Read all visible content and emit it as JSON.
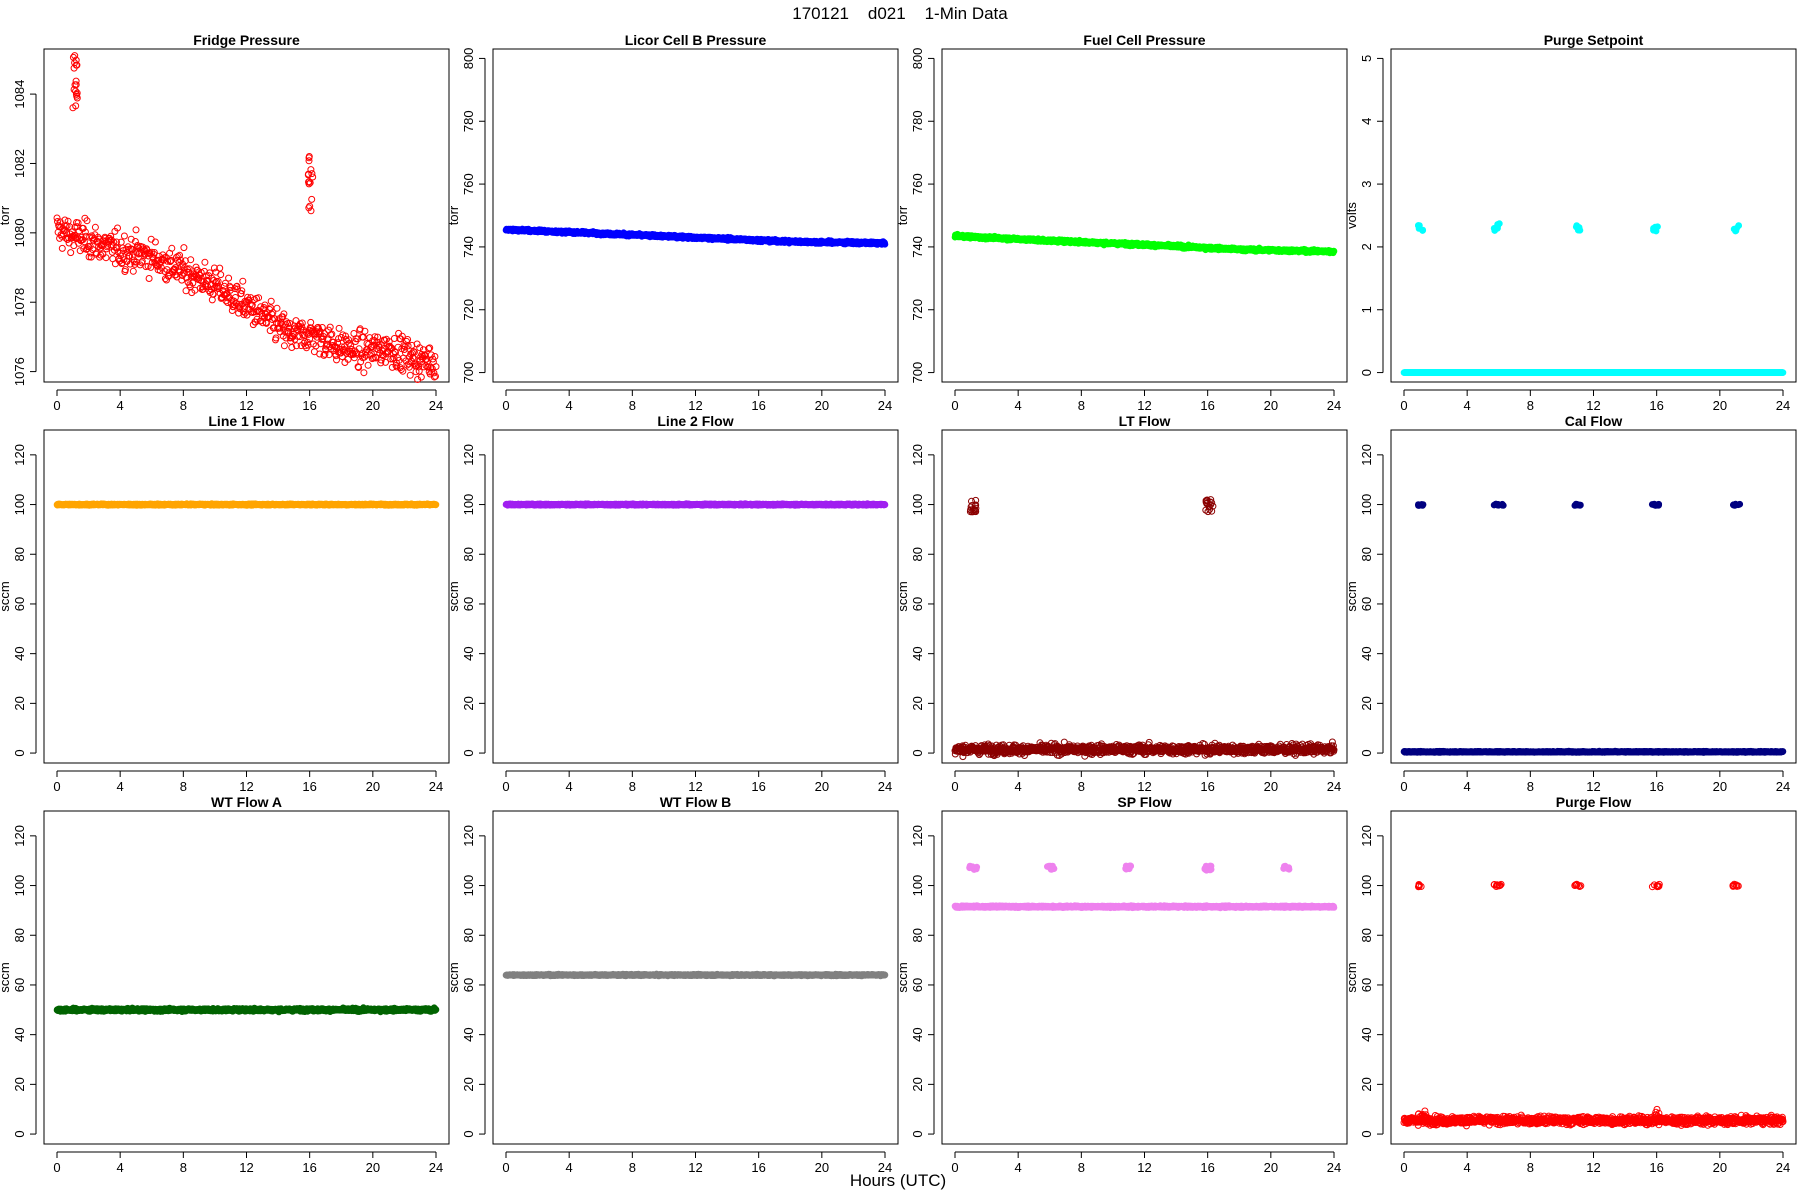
{
  "figure": {
    "title": "170121    d021    1-Min Data",
    "xlabel": "Hours (UTC)"
  },
  "chart_data": [
    {
      "type": "scatter",
      "title": "Fridge Pressure",
      "ylabel": "torr",
      "xlim": [
        0,
        24
      ],
      "ylim": [
        1075.7,
        1085.3
      ],
      "yticks": [
        1076,
        1078,
        1080,
        1082,
        1084
      ],
      "xticks": [
        0,
        4,
        8,
        12,
        16,
        20,
        24
      ],
      "color": "#ff0000",
      "marker": "open-circle",
      "series": [
        {
          "x": [
            0,
            1,
            2,
            3,
            4,
            5,
            6,
            7,
            8,
            9,
            10,
            11,
            12,
            13,
            14,
            15,
            16,
            17,
            18,
            19,
            20,
            21,
            22,
            23,
            24
          ],
          "values": [
            1080.1,
            1079.9,
            1079.8,
            1079.6,
            1079.5,
            1079.4,
            1079.3,
            1079.1,
            1078.9,
            1078.7,
            1078.5,
            1078.2,
            1077.9,
            1077.6,
            1077.3,
            1077.0,
            1077.1,
            1076.9,
            1076.7,
            1076.6,
            1076.6,
            1076.7,
            1076.5,
            1076.3,
            1076.3
          ],
          "noise": 0.35,
          "per_hour": 30
        },
        {
          "x_range": [
            1.0,
            1.3
          ],
          "y_range": [
            1083.6,
            1085.2
          ],
          "count": 18
        },
        {
          "x_range": [
            15.9,
            16.2
          ],
          "y_range": [
            1080.6,
            1082.4
          ],
          "count": 16
        }
      ]
    },
    {
      "type": "scatter",
      "title": "Licor Cell B Pressure",
      "ylabel": "torr",
      "xlim": [
        0,
        24
      ],
      "ylim": [
        697,
        803
      ],
      "yticks": [
        700,
        720,
        740,
        760,
        780,
        800
      ],
      "xticks": [
        0,
        4,
        8,
        12,
        16,
        20,
        24
      ],
      "color": "#0000ff",
      "marker": "filled-circle",
      "series": [
        {
          "x": [
            0,
            6,
            12,
            18,
            24
          ],
          "values": [
            745.5,
            744.3,
            743.0,
            741.7,
            741.2
          ],
          "noise": 0.3,
          "per_hour": 60
        }
      ]
    },
    {
      "type": "scatter",
      "title": "Fuel Cell Pressure",
      "ylabel": "torr",
      "xlim": [
        0,
        24
      ],
      "ylim": [
        697,
        803
      ],
      "yticks": [
        700,
        720,
        740,
        760,
        780,
        800
      ],
      "xticks": [
        0,
        4,
        8,
        12,
        16,
        20,
        24
      ],
      "color": "#00ff00",
      "marker": "filled-circle",
      "series": [
        {
          "x": [
            0,
            6,
            12,
            18,
            24
          ],
          "values": [
            743.5,
            742.0,
            740.7,
            739.2,
            738.5
          ],
          "noise": 0.3,
          "per_hour": 60
        }
      ]
    },
    {
      "type": "scatter",
      "title": "Purge Setpoint",
      "ylabel": "volts",
      "xlim": [
        0,
        24
      ],
      "ylim": [
        -0.15,
        5.15
      ],
      "yticks": [
        0,
        1,
        2,
        3,
        4,
        5
      ],
      "xticks": [
        0,
        4,
        8,
        12,
        16,
        20,
        24
      ],
      "color": "#00ffff",
      "marker": "filled-circle",
      "series": [
        {
          "x": [
            0,
            24
          ],
          "values": [
            0.0,
            0.0
          ],
          "noise": 0.0,
          "per_hour": 60
        },
        {
          "x_range": [
            0.9,
            1.2
          ],
          "y_range": [
            2.25,
            2.35
          ],
          "count": 6
        },
        {
          "x_range": [
            5.7,
            6.1
          ],
          "y_range": [
            2.25,
            2.38
          ],
          "count": 6
        },
        {
          "x_range": [
            10.9,
            11.2
          ],
          "y_range": [
            2.25,
            2.35
          ],
          "count": 6
        },
        {
          "x_range": [
            15.7,
            16.1
          ],
          "y_range": [
            2.25,
            2.36
          ],
          "count": 6
        },
        {
          "x_range": [
            20.9,
            21.2
          ],
          "y_range": [
            2.25,
            2.35
          ],
          "count": 6
        }
      ]
    },
    {
      "type": "scatter",
      "title": "Line 1 Flow",
      "ylabel": "sccm",
      "xlim": [
        0,
        24
      ],
      "ylim": [
        -4,
        130
      ],
      "yticks": [
        0,
        20,
        40,
        60,
        80,
        100,
        120
      ],
      "xticks": [
        0,
        4,
        8,
        12,
        16,
        20,
        24
      ],
      "color": "#ffa500",
      "marker": "filled-circle",
      "series": [
        {
          "x": [
            0,
            24
          ],
          "values": [
            100,
            100
          ],
          "noise": 0.2,
          "per_hour": 60
        }
      ]
    },
    {
      "type": "scatter",
      "title": "Line 2 Flow",
      "ylabel": "sccm",
      "xlim": [
        0,
        24
      ],
      "ylim": [
        -4,
        130
      ],
      "yticks": [
        0,
        20,
        40,
        60,
        80,
        100,
        120
      ],
      "xticks": [
        0,
        4,
        8,
        12,
        16,
        20,
        24
      ],
      "color": "#a020f0",
      "marker": "filled-circle",
      "series": [
        {
          "x": [
            0,
            24
          ],
          "values": [
            100,
            100
          ],
          "noise": 0.2,
          "per_hour": 60
        }
      ]
    },
    {
      "type": "scatter",
      "title": "LT Flow",
      "ylabel": "sccm",
      "xlim": [
        0,
        24
      ],
      "ylim": [
        -4,
        130
      ],
      "yticks": [
        0,
        20,
        40,
        60,
        80,
        100,
        120
      ],
      "xticks": [
        0,
        4,
        8,
        12,
        16,
        20,
        24
      ],
      "color": "#8b0000",
      "marker": "open-circle",
      "series": [
        {
          "x": [
            0,
            24
          ],
          "values": [
            1.5,
            1.5
          ],
          "noise": 1.3,
          "per_hour": 50
        },
        {
          "x_range": [
            0.95,
            1.35
          ],
          "y_range": [
            97,
            102
          ],
          "count": 16
        },
        {
          "x_range": [
            15.85,
            16.35
          ],
          "y_range": [
            97,
            102
          ],
          "count": 16
        }
      ]
    },
    {
      "type": "scatter",
      "title": "Cal Flow",
      "ylabel": "sccm",
      "xlim": [
        0,
        24
      ],
      "ylim": [
        -4,
        130
      ],
      "yticks": [
        0,
        20,
        40,
        60,
        80,
        100,
        120
      ],
      "xticks": [
        0,
        4,
        8,
        12,
        16,
        20,
        24
      ],
      "color": "#000080",
      "marker": "filled-circle",
      "series": [
        {
          "x": [
            0,
            24
          ],
          "values": [
            0.5,
            0.5
          ],
          "noise": 0.15,
          "per_hour": 60
        },
        {
          "x_range": [
            0.9,
            1.3
          ],
          "y_range": [
            99.6,
            100.2
          ],
          "count": 10
        },
        {
          "x_range": [
            5.7,
            6.3
          ],
          "y_range": [
            99.6,
            100.2
          ],
          "count": 12
        },
        {
          "x_range": [
            10.8,
            11.2
          ],
          "y_range": [
            99.6,
            100.2
          ],
          "count": 10
        },
        {
          "x_range": [
            15.7,
            16.3
          ],
          "y_range": [
            99.6,
            100.2
          ],
          "count": 12
        },
        {
          "x_range": [
            20.8,
            21.3
          ],
          "y_range": [
            99.6,
            100.2
          ],
          "count": 10
        }
      ]
    },
    {
      "type": "scatter",
      "title": "WT Flow A",
      "ylabel": "sccm",
      "xlim": [
        0,
        24
      ],
      "ylim": [
        -4,
        130
      ],
      "yticks": [
        0,
        20,
        40,
        60,
        80,
        100,
        120
      ],
      "xticks": [
        0,
        4,
        8,
        12,
        16,
        20,
        24
      ],
      "color": "#006400",
      "marker": "filled-circle",
      "series": [
        {
          "x": [
            0,
            24
          ],
          "values": [
            50,
            50
          ],
          "noise": 0.4,
          "per_hour": 60
        }
      ]
    },
    {
      "type": "scatter",
      "title": "WT Flow B",
      "ylabel": "sccm",
      "xlim": [
        0,
        24
      ],
      "ylim": [
        -4,
        130
      ],
      "yticks": [
        0,
        20,
        40,
        60,
        80,
        100,
        120
      ],
      "xticks": [
        0,
        4,
        8,
        12,
        16,
        20,
        24
      ],
      "color": "#808080",
      "marker": "filled-circle",
      "series": [
        {
          "x": [
            0,
            24
          ],
          "values": [
            64,
            64
          ],
          "noise": 0.2,
          "per_hour": 60
        }
      ]
    },
    {
      "type": "scatter",
      "title": "SP Flow",
      "ylabel": "sccm",
      "xlim": [
        0,
        24
      ],
      "ylim": [
        -4,
        130
      ],
      "yticks": [
        0,
        20,
        40,
        60,
        80,
        100,
        120
      ],
      "xticks": [
        0,
        4,
        8,
        12,
        16,
        20,
        24
      ],
      "color": "#ee82ee",
      "marker": "filled-circle",
      "series": [
        {
          "x": [
            0,
            24
          ],
          "values": [
            91.5,
            91.5
          ],
          "noise": 0.25,
          "per_hour": 60
        },
        {
          "x_range": [
            0.9,
            1.4
          ],
          "y_range": [
            106,
            108
          ],
          "count": 10
        },
        {
          "x_range": [
            5.8,
            6.3
          ],
          "y_range": [
            106.5,
            108
          ],
          "count": 10
        },
        {
          "x_range": [
            10.8,
            11.2
          ],
          "y_range": [
            106.5,
            108
          ],
          "count": 8
        },
        {
          "x_range": [
            15.8,
            16.3
          ],
          "y_range": [
            106,
            108
          ],
          "count": 10
        },
        {
          "x_range": [
            20.8,
            21.2
          ],
          "y_range": [
            106.5,
            108
          ],
          "count": 8
        }
      ]
    },
    {
      "type": "scatter",
      "title": "Purge Flow",
      "ylabel": "sccm",
      "xlim": [
        0,
        24
      ],
      "ylim": [
        -4,
        130
      ],
      "yticks": [
        0,
        20,
        40,
        60,
        80,
        100,
        120
      ],
      "xticks": [
        0,
        4,
        8,
        12,
        16,
        20,
        24
      ],
      "color": "#ff0000",
      "marker": "open-circle",
      "series": [
        {
          "x": [
            0,
            24
          ],
          "values": [
            5.5,
            5.5
          ],
          "noise": 1.1,
          "per_hour": 50
        },
        {
          "x_range": [
            0.9,
            1.4
          ],
          "y_range": [
            6,
            10
          ],
          "count": 8
        },
        {
          "x_range": [
            15.8,
            16.2
          ],
          "y_range": [
            6,
            11
          ],
          "count": 8
        },
        {
          "x_range": [
            0.9,
            1.2
          ],
          "y_range": [
            99.5,
            100.5
          ],
          "count": 8
        },
        {
          "x_range": [
            5.7,
            6.2
          ],
          "y_range": [
            99.5,
            100.5
          ],
          "count": 10
        },
        {
          "x_range": [
            10.8,
            11.2
          ],
          "y_range": [
            99.5,
            100.5
          ],
          "count": 8
        },
        {
          "x_range": [
            15.7,
            16.2
          ],
          "y_range": [
            99.5,
            100.5
          ],
          "count": 10
        },
        {
          "x_range": [
            20.8,
            21.2
          ],
          "y_range": [
            99.5,
            100.5
          ],
          "count": 8
        }
      ]
    }
  ]
}
